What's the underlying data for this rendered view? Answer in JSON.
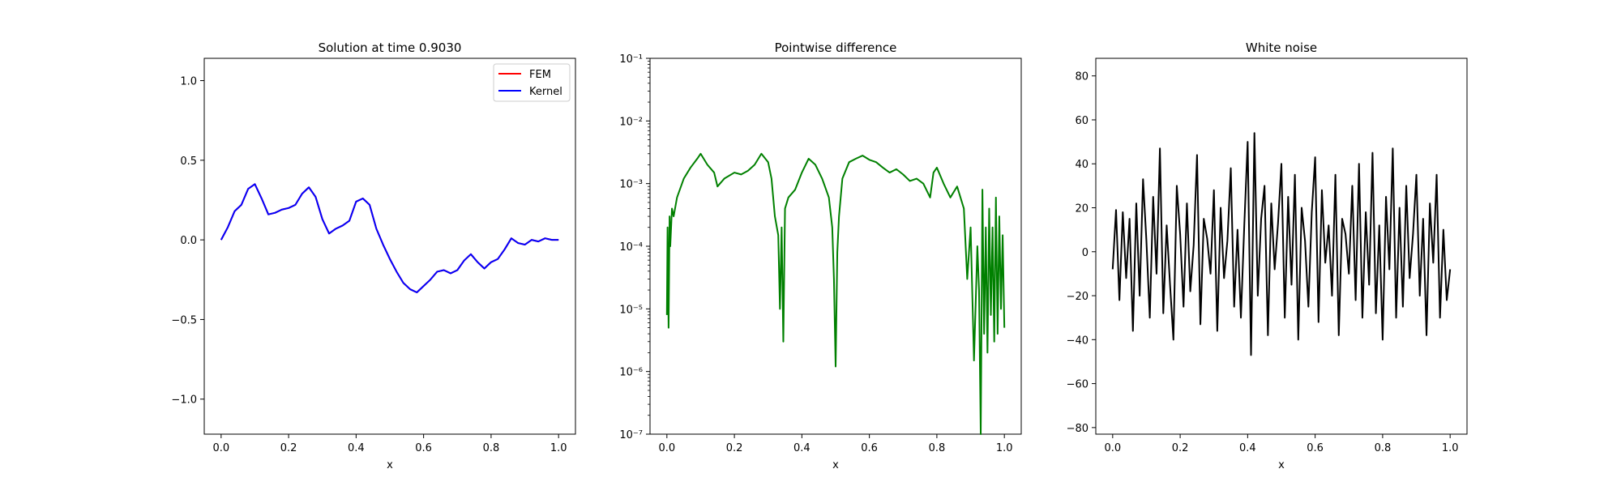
{
  "chart_data": [
    {
      "type": "line",
      "title": "Solution at time 0.9030",
      "xlabel": "x",
      "ylabel": "",
      "xlim": [
        -0.05,
        1.05
      ],
      "ylim": [
        -1.22,
        1.14
      ],
      "xticks": [
        "0.0",
        "0.2",
        "0.4",
        "0.6",
        "0.8",
        "1.0"
      ],
      "yticks": [
        "−1.0",
        "−0.5",
        "0.0",
        "0.5",
        "1.0"
      ],
      "legend": {
        "position": "top-right",
        "entries": [
          "FEM",
          "Kernel"
        ]
      },
      "series": [
        {
          "name": "FEM",
          "color": "#ff0000",
          "x": [
            0.0,
            0.02,
            0.04,
            0.06,
            0.08,
            0.1,
            0.12,
            0.14,
            0.16,
            0.18,
            0.2,
            0.22,
            0.24,
            0.26,
            0.28,
            0.3,
            0.32,
            0.34,
            0.36,
            0.38,
            0.4,
            0.42,
            0.44,
            0.46,
            0.48,
            0.5,
            0.52,
            0.54,
            0.56,
            0.58,
            0.6,
            0.62,
            0.64,
            0.66,
            0.68,
            0.7,
            0.72,
            0.74,
            0.76,
            0.78,
            0.8,
            0.82,
            0.84,
            0.86,
            0.88,
            0.9,
            0.92,
            0.94,
            0.96,
            0.98,
            1.0
          ],
          "y": [
            0.0,
            0.08,
            0.18,
            0.22,
            0.32,
            0.35,
            0.26,
            0.16,
            0.17,
            0.19,
            0.2,
            0.22,
            0.29,
            0.33,
            0.27,
            0.13,
            0.04,
            0.07,
            0.09,
            0.12,
            0.24,
            0.26,
            0.22,
            0.07,
            -0.03,
            -0.12,
            -0.2,
            -0.27,
            -0.31,
            -0.33,
            -0.29,
            -0.25,
            -0.2,
            -0.19,
            -0.21,
            -0.19,
            -0.13,
            -0.09,
            -0.14,
            -0.18,
            -0.14,
            -0.12,
            -0.06,
            0.01,
            -0.02,
            -0.03,
            0.0,
            -0.01,
            0.01,
            0.0,
            0.0
          ]
        },
        {
          "name": "Kernel",
          "color": "#0000ff",
          "x": [
            0.0,
            0.02,
            0.04,
            0.06,
            0.08,
            0.1,
            0.12,
            0.14,
            0.16,
            0.18,
            0.2,
            0.22,
            0.24,
            0.26,
            0.28,
            0.3,
            0.32,
            0.34,
            0.36,
            0.38,
            0.4,
            0.42,
            0.44,
            0.46,
            0.48,
            0.5,
            0.52,
            0.54,
            0.56,
            0.58,
            0.6,
            0.62,
            0.64,
            0.66,
            0.68,
            0.7,
            0.72,
            0.74,
            0.76,
            0.78,
            0.8,
            0.82,
            0.84,
            0.86,
            0.88,
            0.9,
            0.92,
            0.94,
            0.96,
            0.98,
            1.0
          ],
          "y": [
            0.0,
            0.08,
            0.18,
            0.22,
            0.32,
            0.35,
            0.26,
            0.16,
            0.17,
            0.19,
            0.2,
            0.22,
            0.29,
            0.33,
            0.27,
            0.13,
            0.04,
            0.07,
            0.09,
            0.12,
            0.24,
            0.26,
            0.22,
            0.07,
            -0.03,
            -0.12,
            -0.2,
            -0.27,
            -0.31,
            -0.33,
            -0.29,
            -0.25,
            -0.2,
            -0.19,
            -0.21,
            -0.19,
            -0.13,
            -0.09,
            -0.14,
            -0.18,
            -0.14,
            -0.12,
            -0.06,
            0.01,
            -0.02,
            -0.03,
            0.0,
            -0.01,
            0.01,
            0.0,
            0.0
          ]
        }
      ]
    },
    {
      "type": "line",
      "title": "Pointwise difference",
      "xlabel": "x",
      "ylabel": "",
      "yscale": "log",
      "xlim": [
        -0.05,
        1.05
      ],
      "ylim": [
        1e-07,
        0.1
      ],
      "xticks": [
        "0.0",
        "0.2",
        "0.4",
        "0.6",
        "0.8",
        "1.0"
      ],
      "yticks": [
        "10⁻⁷",
        "10⁻⁶",
        "10⁻⁵",
        "10⁻⁴",
        "10⁻³",
        "10⁻²",
        "10⁻¹"
      ],
      "series": [
        {
          "color": "#008000",
          "x": [
            0.0,
            0.002,
            0.005,
            0.008,
            0.01,
            0.015,
            0.02,
            0.03,
            0.05,
            0.07,
            0.09,
            0.1,
            0.12,
            0.14,
            0.15,
            0.17,
            0.2,
            0.22,
            0.24,
            0.26,
            0.28,
            0.3,
            0.31,
            0.32,
            0.33,
            0.335,
            0.34,
            0.345,
            0.35,
            0.36,
            0.38,
            0.4,
            0.42,
            0.44,
            0.46,
            0.48,
            0.49,
            0.495,
            0.5,
            0.505,
            0.51,
            0.52,
            0.54,
            0.56,
            0.58,
            0.6,
            0.62,
            0.64,
            0.66,
            0.68,
            0.7,
            0.72,
            0.74,
            0.76,
            0.78,
            0.79,
            0.8,
            0.82,
            0.84,
            0.86,
            0.88,
            0.89,
            0.9,
            0.91,
            0.92,
            0.925,
            0.93,
            0.935,
            0.94,
            0.945,
            0.95,
            0.955,
            0.96,
            0.965,
            0.97,
            0.975,
            0.98,
            0.985,
            0.99,
            0.995,
            1.0
          ],
          "y": [
            8e-06,
            0.0002,
            5e-06,
            0.0003,
            0.0001,
            0.0004,
            0.0003,
            0.0006,
            0.0012,
            0.0018,
            0.0025,
            0.003,
            0.002,
            0.0015,
            0.0009,
            0.0012,
            0.0015,
            0.0014,
            0.0016,
            0.002,
            0.003,
            0.0022,
            0.0012,
            0.0003,
            0.00015,
            1e-05,
            0.0002,
            3e-06,
            0.0004,
            0.0006,
            0.0008,
            0.0015,
            0.0025,
            0.002,
            0.0012,
            0.0006,
            0.0002,
            3e-05,
            1.2e-06,
            8e-05,
            0.0003,
            0.0012,
            0.0022,
            0.0025,
            0.0028,
            0.0024,
            0.0022,
            0.0018,
            0.0015,
            0.0017,
            0.0014,
            0.0011,
            0.0012,
            0.001,
            0.0006,
            0.0015,
            0.0018,
            0.001,
            0.0006,
            0.0009,
            0.0004,
            3e-05,
            0.0002,
            1.5e-06,
            0.0001,
            2e-05,
            1e-07,
            0.0008,
            4e-06,
            0.0002,
            2e-06,
            0.0004,
            8e-06,
            0.0002,
            3e-06,
            0.0006,
            4e-06,
            0.0003,
            1e-05,
            0.00015,
            5e-06
          ]
        }
      ]
    },
    {
      "type": "line",
      "title": "White noise",
      "xlabel": "x",
      "ylabel": "",
      "xlim": [
        -0.05,
        1.05
      ],
      "ylim": [
        -83,
        88
      ],
      "xticks": [
        "0.0",
        "0.2",
        "0.4",
        "0.6",
        "0.8",
        "1.0"
      ],
      "yticks": [
        "−80",
        "−60",
        "−40",
        "−20",
        "0",
        "20",
        "40",
        "60",
        "80"
      ],
      "series": [
        {
          "color": "#000000",
          "x": [
            0.0,
            0.01,
            0.02,
            0.03,
            0.04,
            0.05,
            0.06,
            0.07,
            0.08,
            0.09,
            0.1,
            0.11,
            0.12,
            0.13,
            0.14,
            0.15,
            0.16,
            0.17,
            0.18,
            0.19,
            0.2,
            0.21,
            0.22,
            0.23,
            0.24,
            0.25,
            0.26,
            0.27,
            0.28,
            0.29,
            0.3,
            0.31,
            0.32,
            0.33,
            0.34,
            0.35,
            0.36,
            0.37,
            0.38,
            0.39,
            0.4,
            0.41,
            0.42,
            0.43,
            0.44,
            0.45,
            0.46,
            0.47,
            0.48,
            0.49,
            0.5,
            0.51,
            0.52,
            0.53,
            0.54,
            0.55,
            0.56,
            0.57,
            0.58,
            0.59,
            0.6,
            0.61,
            0.62,
            0.63,
            0.64,
            0.65,
            0.66,
            0.67,
            0.68,
            0.69,
            0.7,
            0.71,
            0.72,
            0.73,
            0.74,
            0.75,
            0.76,
            0.77,
            0.78,
            0.79,
            0.8,
            0.81,
            0.82,
            0.83,
            0.84,
            0.85,
            0.86,
            0.87,
            0.88,
            0.89,
            0.9,
            0.91,
            0.92,
            0.93,
            0.94,
            0.95,
            0.96,
            0.97,
            0.98,
            0.99,
            1.0
          ],
          "y": [
            -8,
            19,
            -22,
            18,
            -12,
            15,
            -36,
            22,
            -20,
            33,
            5,
            -30,
            25,
            -10,
            47,
            -28,
            12,
            -15,
            -40,
            30,
            8,
            -25,
            22,
            -18,
            3,
            44,
            -33,
            15,
            6,
            -10,
            28,
            -36,
            20,
            -12,
            5,
            38,
            -25,
            10,
            -30,
            12,
            50,
            -47,
            54,
            -20,
            15,
            30,
            -38,
            22,
            -8,
            13,
            40,
            -30,
            25,
            -15,
            35,
            -40,
            20,
            5,
            -25,
            18,
            43,
            -32,
            28,
            -5,
            12,
            -20,
            35,
            -38,
            15,
            8,
            -10,
            30,
            -22,
            40,
            -30,
            18,
            -15,
            45,
            -28,
            12,
            -40,
            25,
            -8,
            47,
            -30,
            20,
            -25,
            30,
            -12,
            8,
            35,
            -20,
            15,
            -38,
            22,
            -5,
            35,
            -30,
            10,
            -22,
            -8
          ]
        }
      ]
    }
  ]
}
